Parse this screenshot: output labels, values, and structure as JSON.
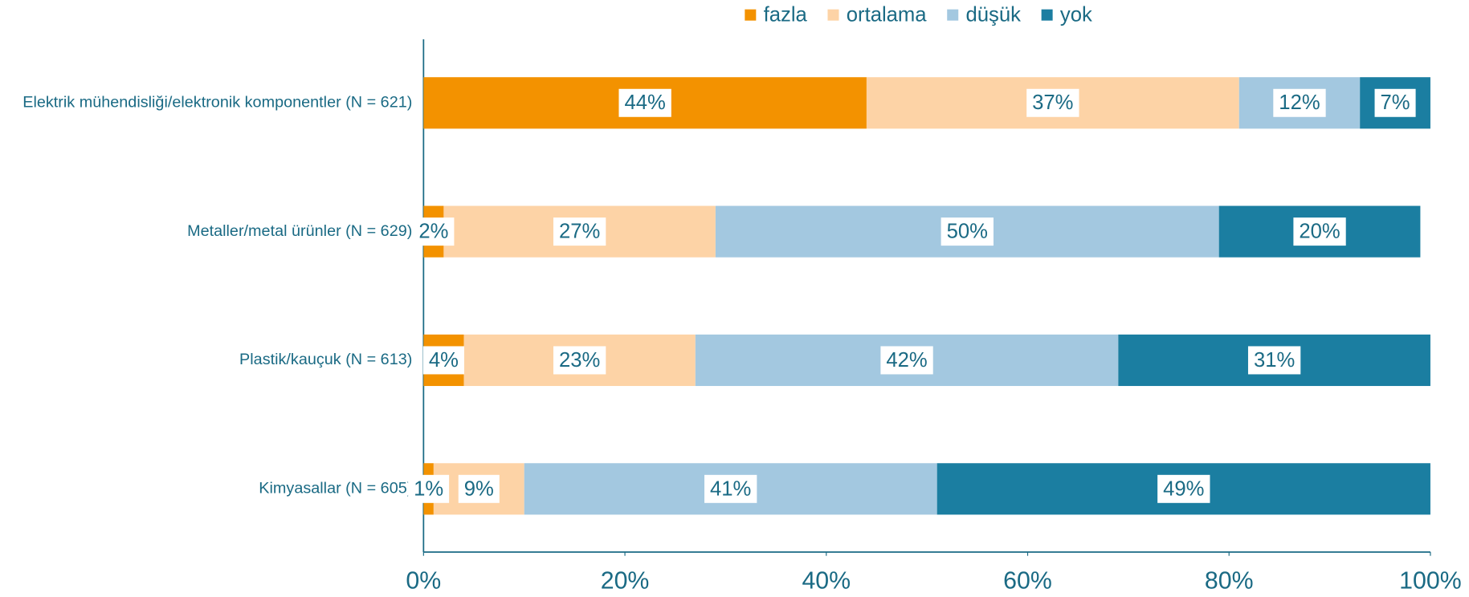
{
  "chart_data": {
    "type": "stacked-barh",
    "categories": [
      "Elektrik mühendisliği/elektronik komponentler (N = 621)",
      "Metaller/metal ürünler (N = 629)",
      "Plastik/kauçuk (N = 613)",
      "Kimyasallar (N = 605)"
    ],
    "series": [
      {
        "name": "fazla",
        "color": "#f39200",
        "values": [
          44,
          2,
          4,
          1
        ],
        "value_labels": [
          "44%",
          "2%",
          "4%",
          "1%"
        ]
      },
      {
        "name": "ortalama",
        "color": "#fdd3a6",
        "values": [
          37,
          27,
          23,
          9
        ],
        "value_labels": [
          "37%",
          "27%",
          "23%",
          "9%"
        ]
      },
      {
        "name": "düşük",
        "color": "#a3c8e0",
        "values": [
          12,
          50,
          42,
          41
        ],
        "value_labels": [
          "12%",
          "50%",
          "42%",
          "41%"
        ]
      },
      {
        "name": "yok",
        "color": "#1b7ea1",
        "values": [
          7,
          20,
          31,
          49
        ],
        "value_labels": [
          "7%",
          "20%",
          "31%",
          "49%"
        ]
      }
    ],
    "xlim": [
      0,
      100
    ],
    "xticks": [
      {
        "value": 0,
        "label": "0%"
      },
      {
        "value": 20,
        "label": "20%"
      },
      {
        "value": 40,
        "label": "40%"
      },
      {
        "value": 60,
        "label": "60%"
      },
      {
        "value": 80,
        "label": "80%"
      },
      {
        "value": 100,
        "label": "100%"
      }
    ],
    "legend": "top"
  }
}
